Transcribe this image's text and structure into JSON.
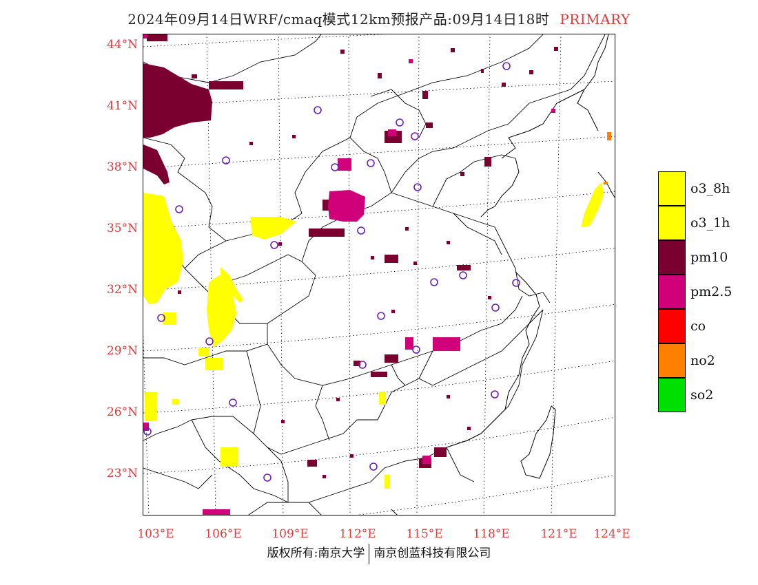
{
  "header": {
    "title": "2024年09月14日WRF/cmaq模式12km预报产品:09月14日18时",
    "mode": "PRIMARY"
  },
  "axes": {
    "latitudes": [
      "44°N",
      "41°N",
      "38°N",
      "35°N",
      "32°N",
      "29°N",
      "26°N",
      "23°N"
    ],
    "longitudes": [
      "103°E",
      "106°E",
      "109°E",
      "112°E",
      "115°E",
      "118°E",
      "121°E",
      "124°E"
    ]
  },
  "legend": {
    "items": [
      {
        "label": "o3_8h",
        "color": "#ffff00"
      },
      {
        "label": "o3_1h",
        "color": "#ffff00"
      },
      {
        "label": "pm10",
        "color": "#7a0030"
      },
      {
        "label": "pm2.5",
        "color": "#d0007a"
      },
      {
        "label": "co",
        "color": "#ff0000"
      },
      {
        "label": "no2",
        "color": "#ff7f00"
      },
      {
        "label": "so2",
        "color": "#00e000"
      }
    ]
  },
  "footer": {
    "left": "版权所有:南京大学",
    "right": "南京创蓝科技有限公司"
  }
}
